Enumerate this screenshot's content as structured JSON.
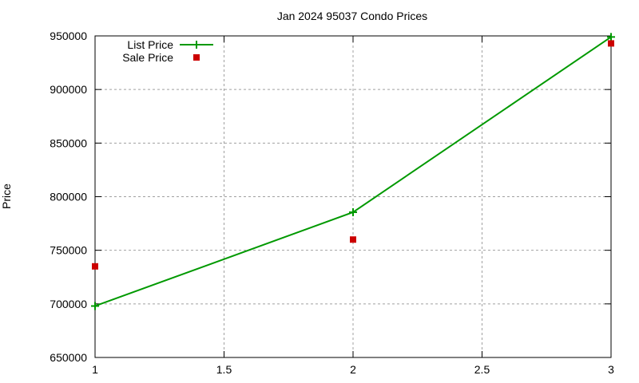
{
  "chart_data": {
    "type": "line",
    "title": "Jan 2024 95037 Condo Prices",
    "xlabel": "",
    "ylabel": "Price",
    "x": [
      1,
      2,
      3
    ],
    "xlim": [
      1,
      3
    ],
    "ylim": [
      650000,
      950000
    ],
    "xticks": [
      "1",
      "1.5",
      "2",
      "2.5",
      "3"
    ],
    "yticks": [
      "650000",
      "700000",
      "750000",
      "800000",
      "850000",
      "900000",
      "950000"
    ],
    "grid": true,
    "legend_position": "top-left",
    "series": [
      {
        "name": "List Price",
        "style": "linespoints",
        "color": "#009900",
        "values": [
          698000,
          785500,
          949000
        ]
      },
      {
        "name": "Sale Price",
        "style": "points",
        "color": "#cc0000",
        "values": [
          735000,
          760000,
          943000
        ]
      }
    ]
  }
}
